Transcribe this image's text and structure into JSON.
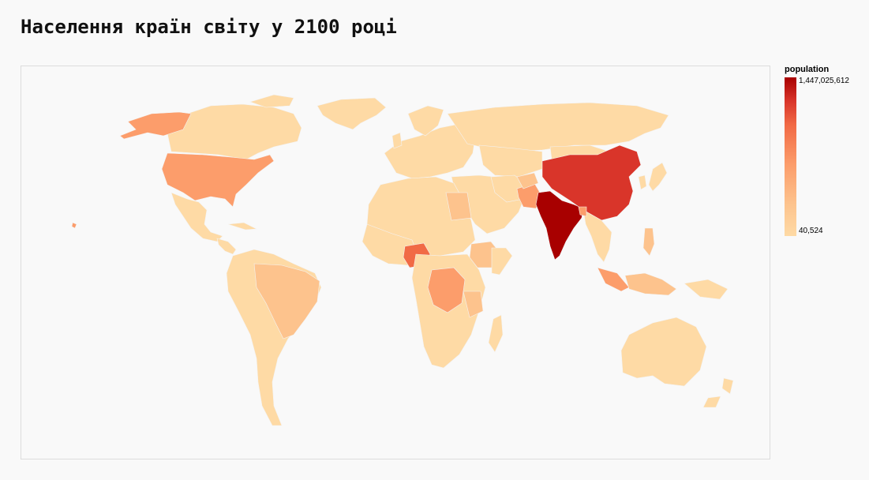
{
  "title": "Населення країн світу у 2100 році",
  "legend": {
    "title": "population",
    "max_label": "1,447,025,612",
    "min_label": "40,524",
    "colors": [
      "#fedaa5",
      "#fdc38d",
      "#fc9d6b",
      "#f16a45",
      "#d9352a",
      "#a80000"
    ]
  },
  "chart_data": {
    "type": "choropleth",
    "projection": "world",
    "value_field": "population",
    "domain": [
      40524,
      1447025612
    ],
    "regions": [
      {
        "name": "India",
        "value": 1447025612
      },
      {
        "name": "China",
        "value": 1065000000
      },
      {
        "name": "Nigeria",
        "value": 546000000
      },
      {
        "name": "United States",
        "value": 394000000
      },
      {
        "name": "Pakistan",
        "value": 403000000
      },
      {
        "name": "Democratic Republic of the Congo",
        "value": 362000000
      },
      {
        "name": "Ethiopia",
        "value": 294000000
      },
      {
        "name": "Indonesia",
        "value": 321000000
      },
      {
        "name": "Tanzania",
        "value": 286000000
      },
      {
        "name": "Egypt",
        "value": 225000000
      },
      {
        "name": "Brazil",
        "value": 181000000
      },
      {
        "name": "Bangladesh",
        "value": 177000000
      },
      {
        "name": "Philippines",
        "value": 146000000
      },
      {
        "name": "Russia",
        "value": 112000000
      },
      {
        "name": "Mexico",
        "value": 116000000
      },
      {
        "name": "Australia",
        "value": 38000000
      },
      {
        "name": "Canada",
        "value": 45000000
      }
    ]
  }
}
